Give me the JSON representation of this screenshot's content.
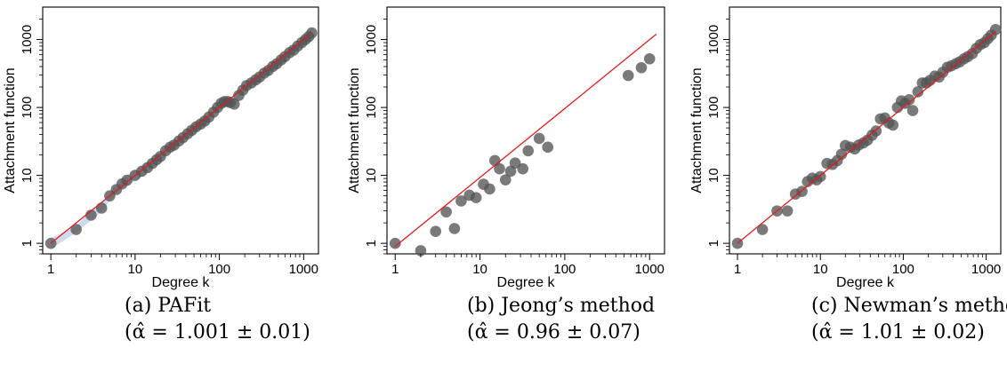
{
  "chart_data": [
    {
      "type": "scatter",
      "title": "",
      "xlabel": "Degree k",
      "ylabel": "Attachment function",
      "xscale": "log",
      "yscale": "log",
      "xlim": [
        0.8,
        1500
      ],
      "ylim": [
        0.7,
        3000
      ],
      "x_ticks": [
        1,
        10,
        100,
        1000
      ],
      "x_tick_labels": [
        "1",
        "10",
        "100",
        "1000"
      ],
      "y_ticks": [
        1,
        10,
        100,
        1000
      ],
      "y_tick_labels": [
        "1",
        "10",
        "100",
        "1000"
      ],
      "grid": false,
      "legend": "none",
      "fit_line": {
        "color": "#e31a1c",
        "x": [
          1,
          1200
        ],
        "y": [
          1,
          1200
        ]
      },
      "confidence_band": {
        "color": "#9fb6dc",
        "present": true
      },
      "point_color": "#555555",
      "caption": {
        "label": "(a) PAFit",
        "estimate": "(α̂ = 1.001 ± 0.01)"
      },
      "points": [
        [
          1,
          1
        ],
        [
          2,
          1.6
        ],
        [
          3,
          2.6
        ],
        [
          4,
          3.3
        ],
        [
          5,
          5
        ],
        [
          6,
          6.2
        ],
        [
          7,
          7.5
        ],
        [
          8,
          8.5
        ],
        [
          10,
          10
        ],
        [
          12,
          11.5
        ],
        [
          14,
          13
        ],
        [
          16,
          15
        ],
        [
          18,
          17
        ],
        [
          20,
          19
        ],
        [
          23,
          23
        ],
        [
          26,
          26
        ],
        [
          29,
          28
        ],
        [
          33,
          32
        ],
        [
          37,
          36
        ],
        [
          42,
          41
        ],
        [
          47,
          46
        ],
        [
          53,
          52
        ],
        [
          60,
          57
        ],
        [
          67,
          63
        ],
        [
          75,
          72
        ],
        [
          85,
          85
        ],
        [
          95,
          100
        ],
        [
          105,
          115
        ],
        [
          115,
          122
        ],
        [
          125,
          122
        ],
        [
          135,
          118
        ],
        [
          150,
          112
        ],
        [
          170,
          150
        ],
        [
          190,
          180
        ],
        [
          210,
          210
        ],
        [
          240,
          230
        ],
        [
          270,
          255
        ],
        [
          300,
          280
        ],
        [
          340,
          320
        ],
        [
          380,
          350
        ],
        [
          430,
          400
        ],
        [
          480,
          440
        ],
        [
          540,
          500
        ],
        [
          600,
          560
        ],
        [
          680,
          640
        ],
        [
          760,
          700
        ],
        [
          850,
          800
        ],
        [
          950,
          900
        ],
        [
          1050,
          1000
        ],
        [
          1150,
          1100
        ],
        [
          1250,
          1250
        ]
      ]
    },
    {
      "type": "scatter",
      "title": "",
      "xlabel": "Degree k",
      "ylabel": "Attachment function",
      "xscale": "log",
      "yscale": "log",
      "xlim": [
        0.8,
        1500
      ],
      "ylim": [
        0.7,
        3000
      ],
      "x_ticks": [
        1,
        10,
        100,
        1000
      ],
      "x_tick_labels": [
        "1",
        "10",
        "100",
        "1000"
      ],
      "y_ticks": [
        1,
        10,
        100,
        1000
      ],
      "y_tick_labels": [
        "1",
        "10",
        "100",
        "1000"
      ],
      "grid": false,
      "legend": "none",
      "fit_line": {
        "color": "#e31a1c",
        "x": [
          1,
          1200
        ],
        "y": [
          0.9,
          1200
        ]
      },
      "confidence_band": {
        "present": false
      },
      "point_color": "#555555",
      "caption": {
        "label": "(b) Jeong’s method",
        "estimate": "(α̂ = 0.96 ± 0.07)"
      },
      "points": [
        [
          1,
          1
        ],
        [
          2,
          0.78
        ],
        [
          3,
          1.5
        ],
        [
          4,
          2.9
        ],
        [
          5,
          1.65
        ],
        [
          6,
          4.2
        ],
        [
          7.5,
          5.1
        ],
        [
          9,
          4.7
        ],
        [
          11,
          7.4
        ],
        [
          13,
          6.3
        ],
        [
          15,
          16.5
        ],
        [
          17,
          12.5
        ],
        [
          20,
          8.6
        ],
        [
          23,
          11.5
        ],
        [
          26,
          15.2
        ],
        [
          32,
          12.5
        ],
        [
          37,
          23
        ],
        [
          50,
          35
        ],
        [
          63,
          26
        ],
        [
          560,
          295
        ],
        [
          800,
          385
        ],
        [
          1000,
          520
        ]
      ]
    },
    {
      "type": "scatter",
      "title": "",
      "xlabel": "Degree k",
      "ylabel": "Attachment function",
      "xscale": "log",
      "yscale": "log",
      "xlim": [
        0.8,
        1500
      ],
      "ylim": [
        0.7,
        3000
      ],
      "x_ticks": [
        1,
        10,
        100,
        1000
      ],
      "x_tick_labels": [
        "1",
        "10",
        "100",
        "1000"
      ],
      "y_ticks": [
        1,
        10,
        100,
        1000
      ],
      "y_tick_labels": [
        "1",
        "10",
        "100",
        "1000"
      ],
      "grid": false,
      "legend": "none",
      "fit_line": {
        "color": "#e31a1c",
        "x": [
          1,
          1300
        ],
        "y": [
          1,
          1300
        ]
      },
      "confidence_band": {
        "present": false
      },
      "point_color": "#555555",
      "caption": {
        "label": "(c) Newman’s method",
        "estimate": "(α̂ = 1.01 ± 0.02)"
      },
      "points": [
        [
          1,
          1
        ],
        [
          2,
          1.6
        ],
        [
          3,
          3
        ],
        [
          4,
          3
        ],
        [
          5,
          5.3
        ],
        [
          6,
          5.8
        ],
        [
          7,
          8.1
        ],
        [
          8,
          9.1
        ],
        [
          9,
          8.6
        ],
        [
          10,
          9.6
        ],
        [
          12,
          15
        ],
        [
          14,
          14.5
        ],
        [
          16,
          16.5
        ],
        [
          18,
          20.5
        ],
        [
          20,
          27.5
        ],
        [
          23,
          26
        ],
        [
          26,
          24.5
        ],
        [
          29,
          28
        ],
        [
          33,
          30
        ],
        [
          37,
          33
        ],
        [
          42,
          39
        ],
        [
          47,
          45
        ],
        [
          53,
          68
        ],
        [
          60,
          70
        ],
        [
          67,
          59
        ],
        [
          75,
          55
        ],
        [
          85,
          100
        ],
        [
          95,
          125
        ],
        [
          105,
          115
        ],
        [
          118,
          130
        ],
        [
          130,
          90
        ],
        [
          150,
          170
        ],
        [
          170,
          230
        ],
        [
          190,
          230
        ],
        [
          210,
          250
        ],
        [
          240,
          290
        ],
        [
          270,
          280
        ],
        [
          300,
          330
        ],
        [
          340,
          390
        ],
        [
          380,
          410
        ],
        [
          430,
          440
        ],
        [
          480,
          470
        ],
        [
          540,
          520
        ],
        [
          600,
          560
        ],
        [
          680,
          620
        ],
        [
          760,
          740
        ],
        [
          850,
          840
        ],
        [
          950,
          900
        ],
        [
          1050,
          1030
        ],
        [
          1150,
          1160
        ],
        [
          1300,
          1400
        ]
      ]
    }
  ]
}
